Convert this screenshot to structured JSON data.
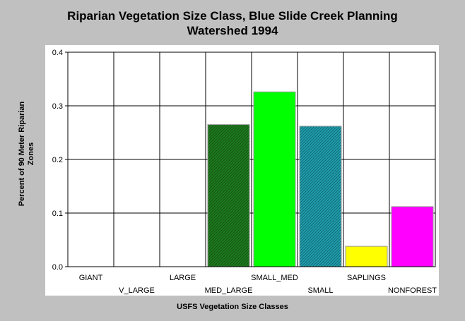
{
  "chart_data": {
    "type": "bar",
    "title_lines": [
      "Riparian Vegetation Size Class, Blue Slide Creek Planning",
      "Watershed 1994"
    ],
    "xlabel": "USFS Vegetation Size Classes",
    "ylabel_lines": [
      "Percent of 90 Meter Riparian",
      "Zones"
    ],
    "categories": [
      "GIANT",
      "V_LARGE",
      "LARGE",
      "MED_LARGE",
      "SMALL_MED",
      "SMALL",
      "SAPLINGS",
      "NONFOREST"
    ],
    "values": [
      0,
      0,
      0,
      0.265,
      0.326,
      0.262,
      0.038,
      0.112
    ],
    "colors": [
      "#000000",
      "#000000",
      "#000000",
      "#1e7d1e",
      "#00ff00",
      "#1fa0b0",
      "#ffff00",
      "#ff00ff"
    ],
    "patterns": [
      "none",
      "none",
      "none",
      "hatch",
      "none",
      "hatch",
      "none",
      "none"
    ],
    "ylim": [
      0,
      0.4
    ],
    "yticks": [
      "0.0",
      "0.1",
      "0.2",
      "0.3",
      "0.4"
    ],
    "grid": true,
    "legend": "none"
  }
}
